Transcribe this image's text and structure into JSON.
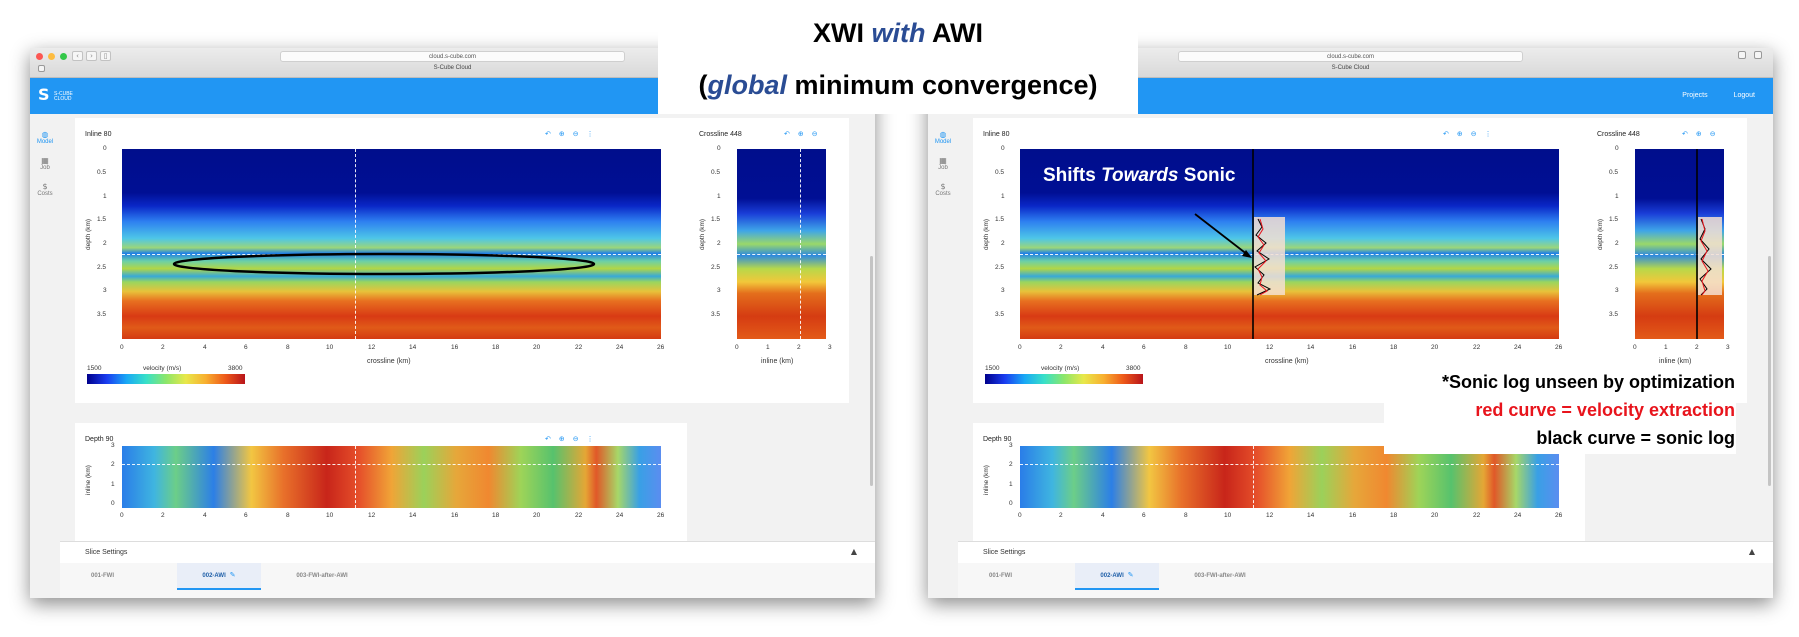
{
  "slide": {
    "title_prefix": "XWI",
    "title_em": "with",
    "title_suffix": "AWI",
    "subtitle_open": "(",
    "subtitle_em": "global",
    "subtitle_rest": "minimum convergence)",
    "shifts_a": "Shifts",
    "shifts_em": "Towards",
    "shifts_b": "Sonic",
    "note1": "*Sonic log unseen by optimization",
    "note2": "red curve = velocity extraction",
    "note3": "black curve = sonic log",
    "accent_blue": "#2a4c94",
    "note_red": "#e8141c"
  },
  "browser": {
    "url": "cloud.s-cube.com",
    "tab_title": "S-Cube Cloud"
  },
  "app": {
    "brand": "S-CUBE",
    "brand_sub": "CLOUD",
    "nav": {
      "projects": "Projects",
      "logout": "Logout"
    },
    "header_color": "#2196f3",
    "sidebar": [
      {
        "label": "Model",
        "icon": "globe-icon",
        "glyph": "◍"
      },
      {
        "label": "Job",
        "icon": "grid-icon",
        "glyph": "▦"
      },
      {
        "label": "Costs",
        "icon": "dollar-icon",
        "glyph": "$"
      }
    ]
  },
  "panels": {
    "inline_title": "Inline 80",
    "crossline_title": "Crossline 448",
    "depth_title": "Depth 90",
    "tools": {
      "undo": "↶",
      "zoom_in": "⊕",
      "zoom_out": "⊖",
      "more": "⋮"
    },
    "inline_yticks": [
      "0",
      "0.5",
      "1",
      "1.5",
      "2",
      "2.5",
      "3",
      "3.5"
    ],
    "inline_xticks": [
      "0",
      "2",
      "4",
      "6",
      "8",
      "10",
      "12",
      "14",
      "16",
      "18",
      "20",
      "22",
      "24",
      "26"
    ],
    "inline_xlabel": "crossline (km)",
    "depth_axis_label": "depth (km)",
    "cross_xticks": [
      "0",
      "1",
      "2",
      "3"
    ],
    "cross_xlabel": "inline (km)",
    "depth_yticks": [
      "3",
      "2",
      "1",
      "0"
    ],
    "depth_ylabel": "inline (km)",
    "colorbar": {
      "min": "1500",
      "label": "velocity (m/s)",
      "max": "3800"
    }
  },
  "slice_settings": {
    "label": "Slice Settings",
    "caret": "▲"
  },
  "tabs": [
    {
      "label": "001-FWI"
    },
    {
      "label": "002-AWI",
      "edit": "✎"
    },
    {
      "label": "003-FWI-after-AWI"
    }
  ]
}
